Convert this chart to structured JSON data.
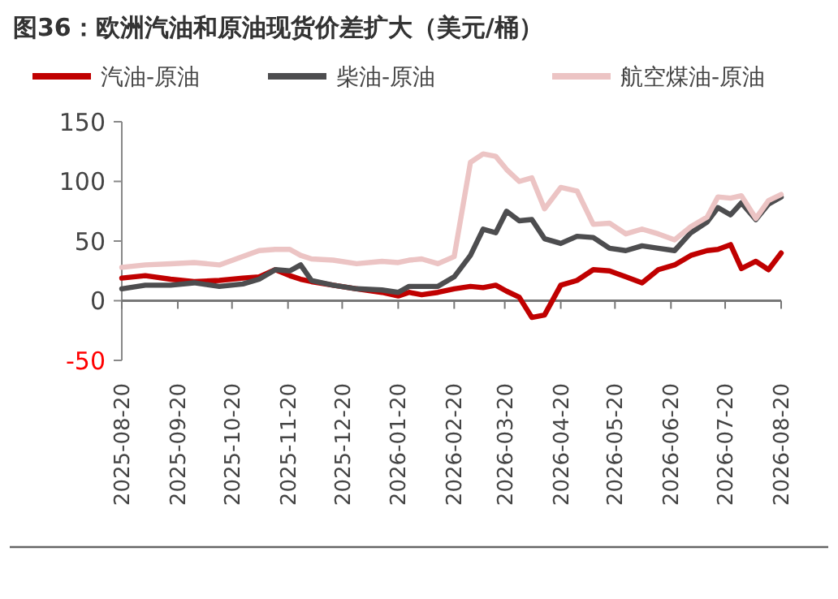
{
  "chart_data": {
    "type": "line",
    "title": "图36：欧洲汽油和原油现货价差扩大（美元/桶）",
    "x": [
      "2025-08-20",
      "2025-09-02",
      "2025-09-16",
      "2025-09-29",
      "2025-10-13",
      "2025-10-26",
      "2025-11-04",
      "2025-11-13",
      "2025-11-21",
      "2025-11-27",
      "2025-12-03",
      "2025-12-15",
      "2025-12-28",
      "2026-01-11",
      "2026-01-20",
      "2026-01-26",
      "2026-02-02",
      "2026-02-11",
      "2026-02-20",
      "2026-03-01",
      "2026-03-08",
      "2026-03-15",
      "2026-03-21",
      "2026-03-28",
      "2026-04-04",
      "2026-04-11",
      "2026-04-20",
      "2026-04-29",
      "2026-05-08",
      "2026-05-17",
      "2026-05-26",
      "2026-06-04",
      "2026-06-13",
      "2026-06-22",
      "2026-07-01",
      "2026-07-10",
      "2026-07-16",
      "2026-07-23",
      "2026-07-29",
      "2026-08-06",
      "2026-08-13",
      "2026-08-20"
    ],
    "series": [
      {
        "name": "汽油-原油",
        "color": "#c00000",
        "values": [
          19,
          21,
          18,
          16,
          17,
          19,
          20,
          26,
          21,
          18,
          16,
          13,
          10,
          7,
          4,
          7,
          5,
          7,
          10,
          12,
          11,
          13,
          8,
          3,
          -14,
          -12,
          13,
          17,
          26,
          25,
          20,
          15,
          26,
          30,
          38,
          42,
          43,
          47,
          27,
          33,
          26,
          40
        ]
      },
      {
        "name": "柴油-原油",
        "color": "#4d4d4f",
        "values": [
          10,
          13,
          13,
          15,
          12,
          14,
          18,
          26,
          25,
          30,
          17,
          13,
          10,
          9,
          7,
          12,
          12,
          12,
          20,
          38,
          60,
          57,
          75,
          67,
          68,
          52,
          48,
          54,
          53,
          44,
          42,
          46,
          44,
          42,
          57,
          66,
          78,
          72,
          82,
          68,
          81,
          87
        ]
      },
      {
        "name": "航空煤油-原油",
        "color": "#ecc4c4",
        "values": [
          28,
          30,
          31,
          32,
          30,
          37,
          42,
          43,
          43,
          38,
          35,
          34,
          31,
          33,
          32,
          34,
          35,
          31,
          37,
          116,
          123,
          121,
          110,
          100,
          103,
          77,
          95,
          92,
          64,
          65,
          56,
          60,
          56,
          51,
          62,
          70,
          87,
          86,
          88,
          69,
          84,
          89
        ]
      }
    ],
    "xlim": [
      "2025-08-20",
      "2026-08-20"
    ],
    "xticks": [
      "2025-08-20",
      "2025-09-20",
      "2025-10-20",
      "2025-11-20",
      "2025-12-20",
      "2026-01-20",
      "2026-02-20",
      "2026-03-20",
      "2026-04-20",
      "2026-05-20",
      "2026-06-20",
      "2026-07-20",
      "2026-08-20"
    ],
    "ylim": [
      -50,
      150
    ],
    "yticks": [
      -50,
      0,
      50,
      100,
      150
    ],
    "legend": "top",
    "marker": "none",
    "line_style": "solid"
  }
}
